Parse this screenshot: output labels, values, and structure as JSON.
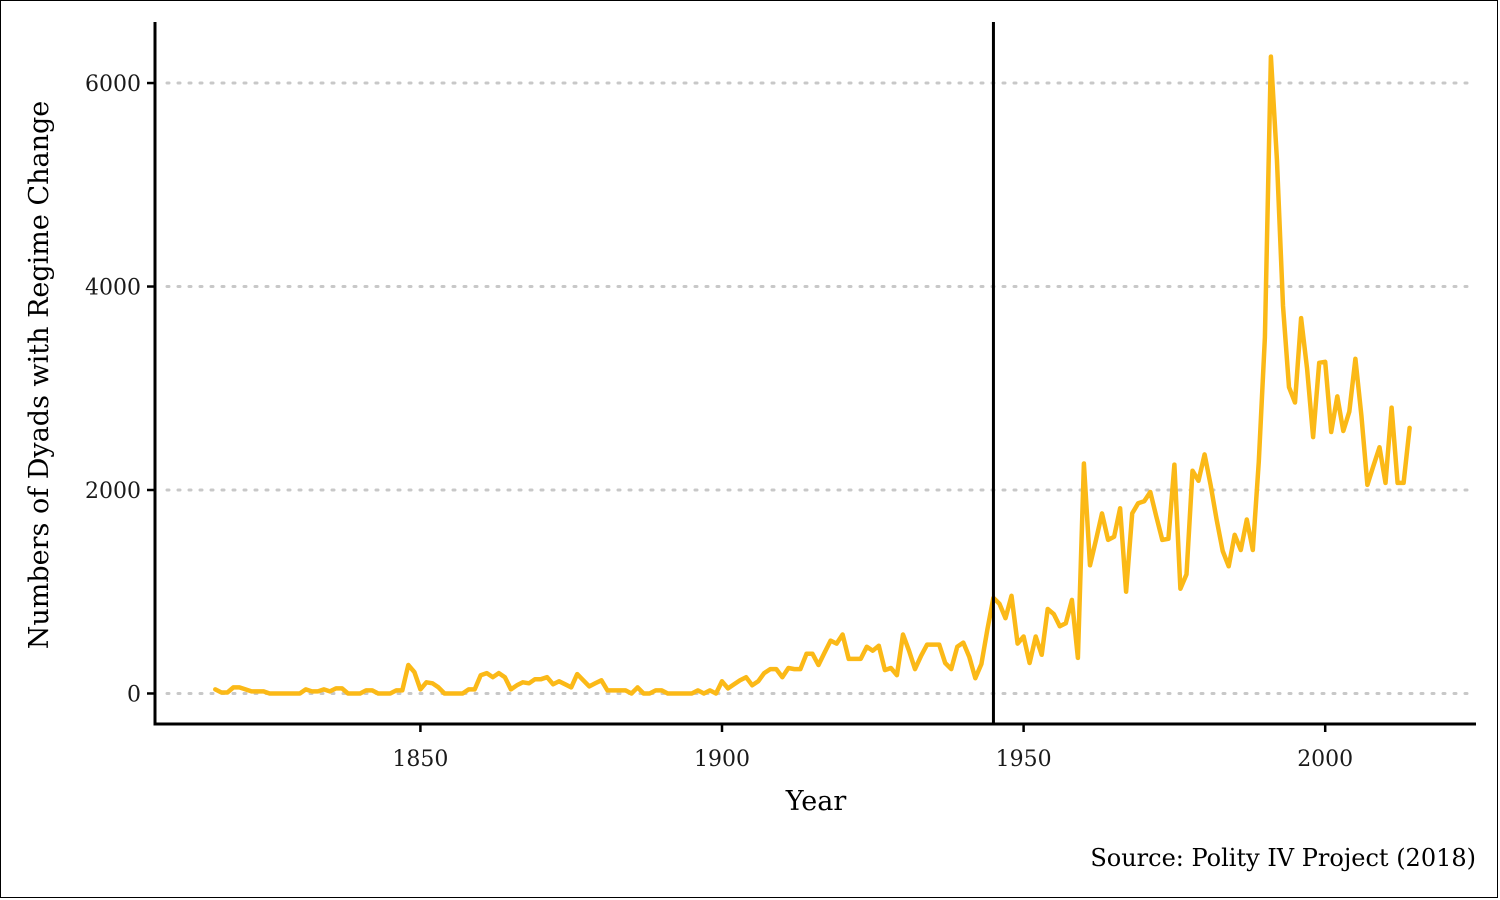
{
  "chart_data": {
    "type": "line",
    "title": "",
    "xlabel": "Year",
    "ylabel": "Numbers of Dyads with Regime Change",
    "caption": "Source: Polity IV Project (2018)",
    "xlim": [
      1806,
      2025
    ],
    "ylim": [
      -300,
      6600
    ],
    "x_ticks": [
      1850,
      1900,
      1950,
      2000
    ],
    "y_ticks": [
      0,
      2000,
      4000,
      6000
    ],
    "grid": "horizontal-dotted",
    "line_color": "#FBB917",
    "reference_line": {
      "x": 1945,
      "color": "#000000"
    },
    "series": [
      {
        "x": [
          1816,
          1817,
          1818,
          1819,
          1820,
          1821,
          1822,
          1823,
          1824,
          1825,
          1826,
          1827,
          1828,
          1829,
          1830,
          1831,
          1832,
          1833,
          1834,
          1835,
          1836,
          1837,
          1838,
          1839,
          1840,
          1841,
          1842,
          1843,
          1844,
          1845,
          1846,
          1847,
          1848,
          1849,
          1850,
          1851,
          1852,
          1853,
          1854,
          1855,
          1856,
          1857,
          1858,
          1859,
          1860,
          1861,
          1862,
          1863,
          1864,
          1865,
          1866,
          1867,
          1868,
          1869,
          1870,
          1871,
          1872,
          1873,
          1874,
          1875,
          1876,
          1877,
          1878,
          1879,
          1880,
          1881,
          1882,
          1883,
          1884,
          1885,
          1886,
          1887,
          1888,
          1889,
          1890,
          1891,
          1892,
          1893,
          1894,
          1895,
          1896,
          1897,
          1898,
          1899,
          1900,
          1901,
          1902,
          1903,
          1904,
          1905,
          1906,
          1907,
          1908,
          1909,
          1910,
          1911,
          1912,
          1913,
          1914,
          1915,
          1916,
          1917,
          1918,
          1919,
          1920,
          1921,
          1922,
          1923,
          1924,
          1925,
          1926,
          1927,
          1928,
          1929,
          1930,
          1931,
          1932,
          1933,
          1934,
          1935,
          1936,
          1937,
          1938,
          1939,
          1940,
          1941,
          1942,
          1943,
          1944,
          1945,
          1946,
          1947,
          1948,
          1949,
          1950,
          1951,
          1952,
          1953,
          1954,
          1955,
          1956,
          1957,
          1958,
          1959,
          1960,
          1961,
          1962,
          1963,
          1964,
          1965,
          1966,
          1967,
          1968,
          1969,
          1970,
          1971,
          1972,
          1973,
          1974,
          1975,
          1976,
          1977,
          1978,
          1979,
          1980,
          1981,
          1982,
          1983,
          1984,
          1985,
          1986,
          1987,
          1988,
          1989,
          1990,
          1991,
          1992,
          1993,
          1994,
          1995,
          1996,
          1997,
          1998,
          1999,
          2000,
          2001,
          2002,
          2003,
          2004,
          2005,
          2006,
          2007,
          2008,
          2009,
          2010,
          2011,
          2012,
          2013,
          2014
        ],
        "values": [
          40,
          10,
          10,
          60,
          60,
          40,
          20,
          20,
          20,
          0,
          0,
          0,
          0,
          0,
          0,
          40,
          20,
          20,
          40,
          20,
          50,
          50,
          0,
          0,
          0,
          30,
          30,
          0,
          0,
          0,
          30,
          30,
          280,
          210,
          40,
          110,
          100,
          60,
          0,
          0,
          0,
          0,
          40,
          40,
          180,
          200,
          160,
          200,
          160,
          40,
          80,
          110,
          100,
          140,
          140,
          160,
          90,
          120,
          90,
          60,
          190,
          130,
          70,
          100,
          130,
          30,
          30,
          30,
          30,
          0,
          60,
          0,
          0,
          30,
          30,
          0,
          0,
          0,
          0,
          0,
          30,
          0,
          30,
          0,
          120,
          50,
          90,
          130,
          160,
          80,
          120,
          200,
          240,
          240,
          160,
          250,
          240,
          240,
          390,
          390,
          280,
          400,
          520,
          490,
          580,
          340,
          340,
          340,
          460,
          420,
          470,
          230,
          250,
          180,
          580,
          420,
          240,
          370,
          480,
          480,
          480,
          300,
          240,
          460,
          500,
          360,
          150,
          290,
          630,
          940,
          880,
          740,
          960,
          490,
          560,
          300,
          560,
          380,
          830,
          780,
          660,
          690,
          920,
          350,
          2260,
          1260,
          1510,
          1770,
          1510,
          1540,
          1820,
          1000,
          1770,
          1870,
          1890,
          1980,
          1740,
          1510,
          1520,
          2250,
          1030,
          1170,
          2190,
          2090,
          2350,
          2050,
          1710,
          1400,
          1250,
          1560,
          1410,
          1710,
          1410,
          2280,
          3500,
          6260,
          5250,
          3810,
          3010,
          2860,
          3690,
          3190,
          2520,
          3250,
          3260,
          2570,
          2920,
          2580,
          2770,
          3290,
          2730,
          2050,
          2240,
          2420,
          2070,
          2810,
          2070,
          2070,
          2610
        ]
      }
    ]
  }
}
